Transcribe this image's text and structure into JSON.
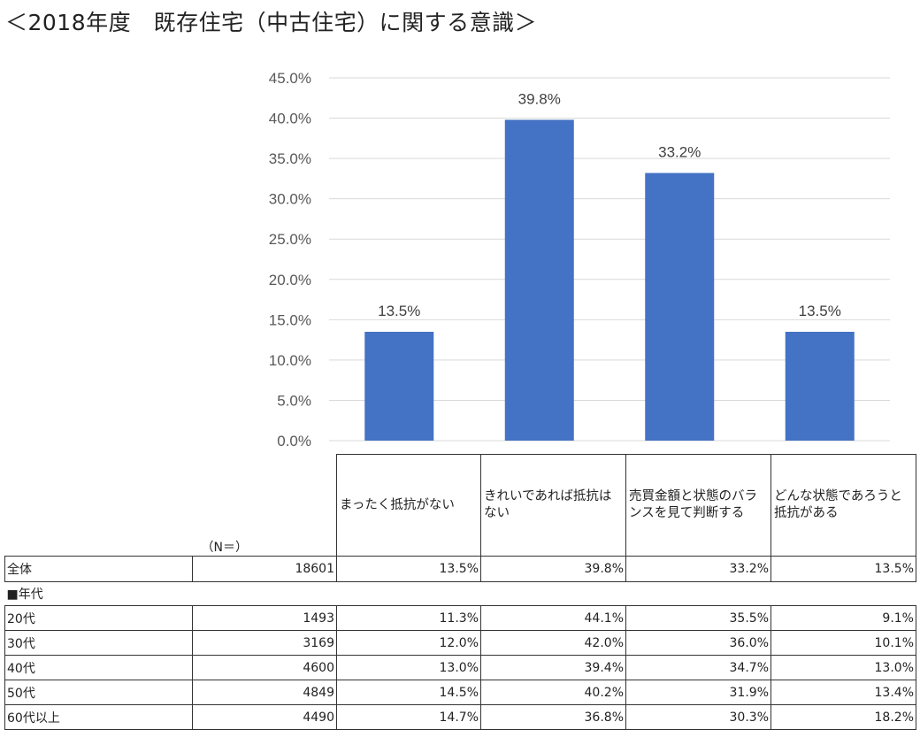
{
  "title": "＜2018年度　既存住宅（中古住宅）に関する意識＞",
  "chart_data": {
    "type": "bar",
    "categories": [
      "まったく抵抗がない",
      "きれいであれば抵抗はない",
      "売買金額と状態のバランスを見て判断する",
      "どんな状態であろうと抵抗がある"
    ],
    "values": [
      13.5,
      39.8,
      33.2,
      13.5
    ],
    "value_labels": [
      "13.5%",
      "39.8%",
      "33.2%",
      "13.5%"
    ],
    "ylim": [
      0,
      45
    ],
    "yticks": [
      "45.0%",
      "40.0%",
      "35.0%",
      "30.0%",
      "25.0%",
      "20.0%",
      "15.0%",
      "10.0%",
      "5.0%",
      "0.0%"
    ],
    "grid": true,
    "bar_color": "#4472C4",
    "grid_color": "#D9D9D9"
  },
  "table": {
    "n_label": "（N＝）",
    "headers": [
      "まったく抵抗がない",
      "きれいであれば抵抗はない",
      "売買金額と状態のバランスを見て判断する",
      "どんな状態であろうと抵抗がある"
    ],
    "total": {
      "label": "全体",
      "n": "18601",
      "values": [
        "13.5%",
        "39.8%",
        "33.2%",
        "13.5%"
      ]
    },
    "section_label": "■年代",
    "rows": [
      {
        "label": "20代",
        "n": "1493",
        "values": [
          "11.3%",
          "44.1%",
          "35.5%",
          "9.1%"
        ]
      },
      {
        "label": "30代",
        "n": "3169",
        "values": [
          "12.0%",
          "42.0%",
          "36.0%",
          "10.1%"
        ]
      },
      {
        "label": "40代",
        "n": "4600",
        "values": [
          "13.0%",
          "39.4%",
          "34.7%",
          "13.0%"
        ]
      },
      {
        "label": "50代",
        "n": "4849",
        "values": [
          "14.5%",
          "40.2%",
          "31.9%",
          "13.4%"
        ]
      },
      {
        "label": "60代以上",
        "n": "4490",
        "values": [
          "14.7%",
          "36.8%",
          "30.3%",
          "18.2%"
        ]
      }
    ]
  }
}
